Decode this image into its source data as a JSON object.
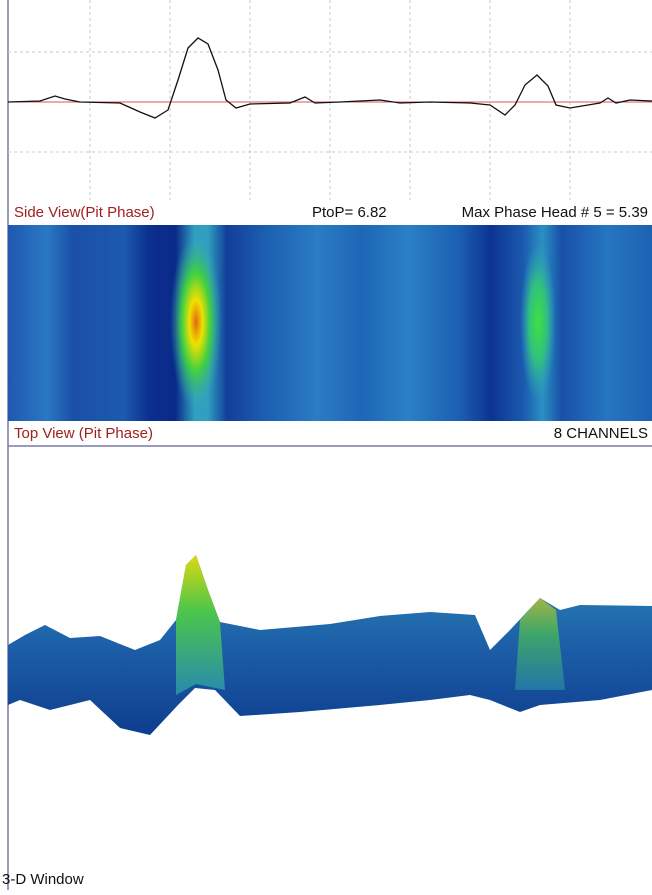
{
  "side_view": {
    "title": "Side View(Pit Phase)",
    "ptop": "PtoP= 6.82",
    "max_phase": "Max Phase Head # 5 = 5.39"
  },
  "top_view": {
    "title": "Top View (Pit Phase)",
    "channels": "8 CHANNELS"
  },
  "three_d": {
    "title": "3-D Window"
  }
}
